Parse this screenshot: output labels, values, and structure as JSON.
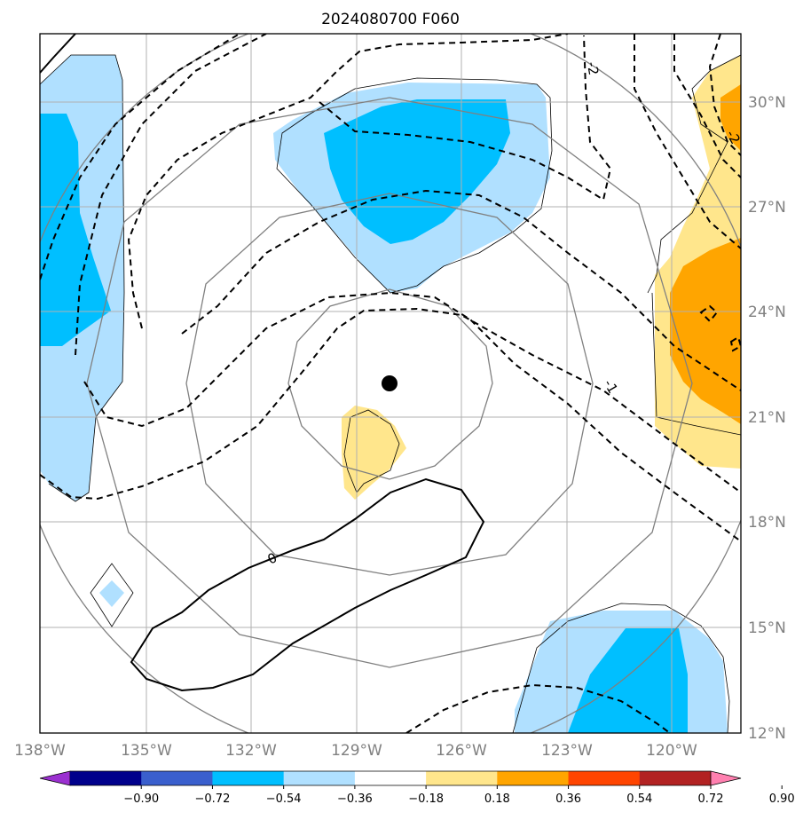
{
  "title": "2024080700 F060",
  "lat_labels": [
    "30°N",
    "27°N",
    "24°N",
    "21°N",
    "18°N",
    "15°N",
    "12°N"
  ],
  "lon_labels": [
    "138°W",
    "135°W",
    "132°W",
    "129°W",
    "126°W",
    "123°W",
    "120°W"
  ],
  "contour_labels": [
    "-2",
    "-1",
    "0"
  ],
  "colorbar": {
    "ticks": [
      "−0.90",
      "−0.72",
      "−0.54",
      "−0.36",
      "−0.18",
      "0.18",
      "0.36",
      "0.54",
      "0.72",
      "0.90"
    ],
    "colors": [
      "#9b30d0",
      "#00008b",
      "#3a5fcd",
      "#00bfff",
      "#b0e0ff",
      "#ffffff",
      "#ffe68c",
      "#ffa500",
      "#ff4500",
      "#b22222",
      "#ff80b0"
    ]
  },
  "center_marker": "storm-center-dot"
}
